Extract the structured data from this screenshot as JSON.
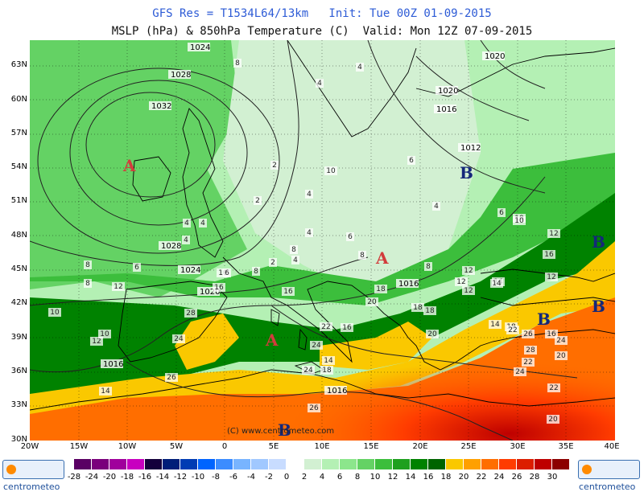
{
  "header": {
    "line1": "GFS Res = T1534L64/13km   Init: Tue 00Z 01-09-2015",
    "line2": "MSLP (hPa) & 850hPa Temperature (C)  Valid: Mon 12Z 07-09-2015"
  },
  "map": {
    "lat_labels": [
      "63N",
      "60N",
      "57N",
      "54N",
      "51N",
      "48N",
      "45N",
      "42N",
      "39N",
      "36N",
      "33N",
      "30N"
    ],
    "lon_labels": [
      "20W",
      "15W",
      "10W",
      "5W",
      "0",
      "5E",
      "10E",
      "15E",
      "20E",
      "25E",
      "30E",
      "35E",
      "40E"
    ],
    "watermark": "(C) www.centrometeo.com",
    "isobars": [
      "1024",
      "1028",
      "1032",
      "1028",
      "1024",
      "1020",
      "1016",
      "1020",
      "1016",
      "1012",
      "1016",
      "1016",
      "1020"
    ],
    "pressure_centers": [
      {
        "letter": "A",
        "type": "high"
      },
      {
        "letter": "A",
        "type": "high"
      },
      {
        "letter": "A",
        "type": "high"
      },
      {
        "letter": "B",
        "type": "low"
      },
      {
        "letter": "B",
        "type": "low"
      },
      {
        "letter": "B",
        "type": "low"
      },
      {
        "letter": "B",
        "type": "low"
      },
      {
        "letter": "B",
        "type": "low"
      }
    ],
    "temp_labels": [
      "8",
      "4",
      "2",
      "4",
      "4",
      "10",
      "6",
      "4",
      "2",
      "4",
      "4",
      "4",
      "4",
      "2",
      "4",
      "6",
      "8",
      "8",
      "6",
      "10",
      "12",
      "8",
      "6",
      "10",
      "12",
      "8",
      "8",
      "8",
      "6",
      "12",
      "14",
      "16",
      "12",
      "14",
      "12",
      "12",
      "10",
      "12",
      "10",
      "10",
      "14",
      "16",
      "14",
      "18",
      "18",
      "20",
      "20",
      "18",
      "22",
      "26",
      "24",
      "22",
      "28",
      "16",
      "20",
      "20",
      "22",
      "24",
      "26",
      "24",
      "24",
      "18",
      "14",
      "16",
      "18",
      "22",
      "26",
      "24",
      "28",
      "16"
    ]
  },
  "legend": {
    "values": [
      "-28",
      "-24",
      "-20",
      "-18",
      "-16",
      "-14",
      "-12",
      "-10",
      "-8",
      "-6",
      "-4",
      "-2",
      "0",
      "2",
      "4",
      "6",
      "8",
      "10",
      "12",
      "14",
      "16",
      "18",
      "20",
      "22",
      "24",
      "26",
      "28",
      "30"
    ],
    "colors": [
      "#5a0064",
      "#7a007c",
      "#a0009c",
      "#c800c0",
      "#14003c",
      "#001e78",
      "#003cb4",
      "#0064ff",
      "#3c8cff",
      "#78b4ff",
      "#a0c8ff",
      "#c8dcff",
      "#ffffff",
      "#d2f0d2",
      "#b4f0b4",
      "#8ce68c",
      "#64d264",
      "#3cbe3c",
      "#1ea01e",
      "#008200",
      "#006400",
      "#fac800",
      "#ffa000",
      "#ff6e00",
      "#ff3c00",
      "#dc1e00",
      "#be0000",
      "#8c0000"
    ],
    "left_logo": "centrometeo",
    "right_logo": "centrometeo"
  }
}
